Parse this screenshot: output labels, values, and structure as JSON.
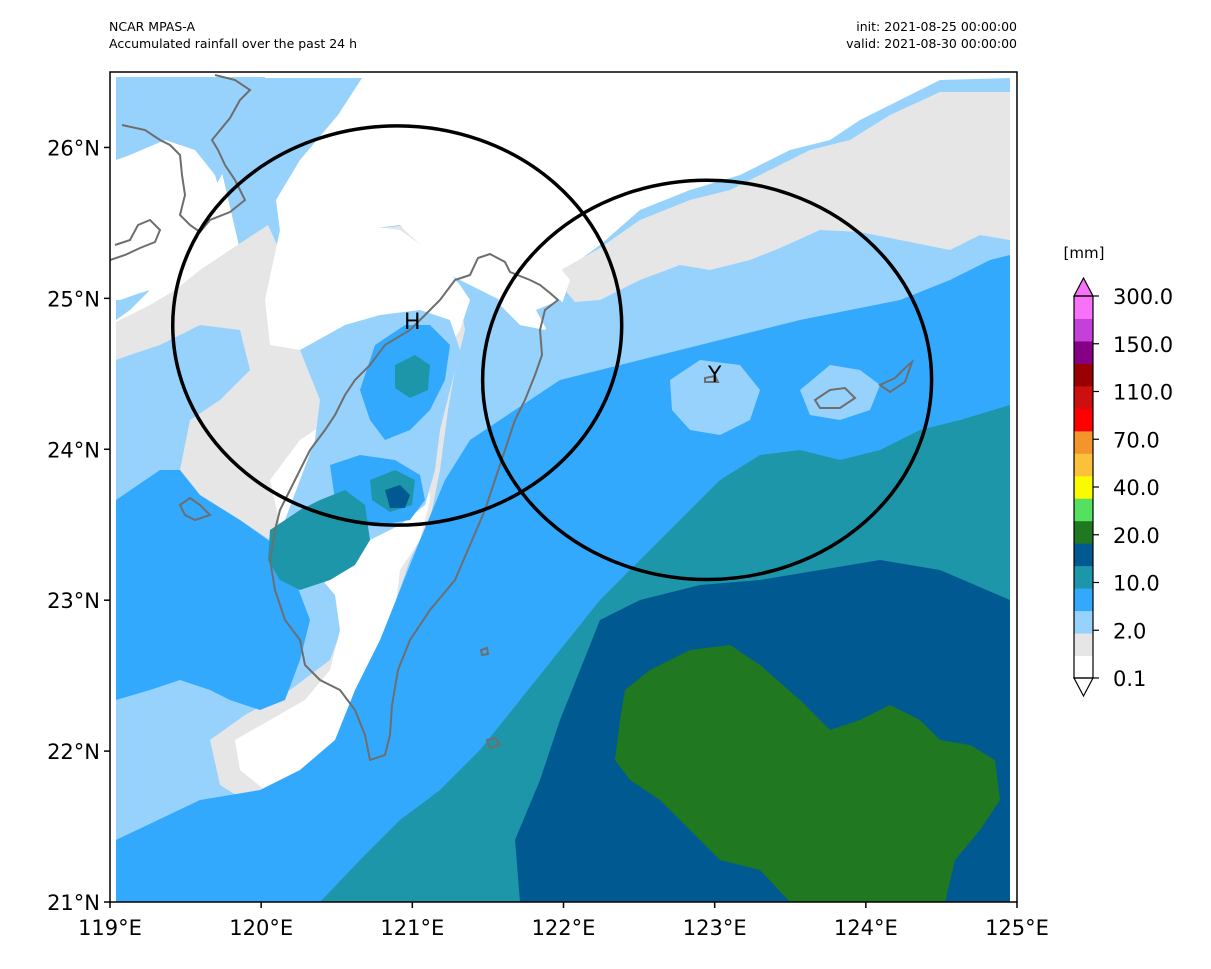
{
  "header": {
    "model": "NCAR MPAS-A",
    "description": "Accumulated rainfall over the past 24 h",
    "init": "init: 2021-08-25 00:00:00",
    "valid": "valid: 2021-08-30 00:00:00"
  },
  "map": {
    "lon_range": [
      119,
      125
    ],
    "lat_range": [
      21,
      26.5
    ],
    "lon_ticks": [
      "119°E",
      "120°E",
      "121°E",
      "122°E",
      "123°E",
      "124°E",
      "125°E"
    ],
    "lat_ticks": [
      "21°N",
      "22°N",
      "23°N",
      "24°N",
      "25°N",
      "26°N"
    ],
    "markers": [
      {
        "label": "H",
        "lon": 121.0,
        "lat": 24.85
      },
      {
        "label": "Y",
        "lon": 123.0,
        "lat": 24.5
      }
    ],
    "circles": [
      {
        "center_lon": 120.9,
        "center_lat": 24.82,
        "radius_deg": 1.35
      },
      {
        "center_lon": 122.95,
        "center_lat": 24.46,
        "radius_deg": 1.35
      }
    ]
  },
  "colorbar": {
    "unit": "[mm]",
    "tick_labels": [
      "0.1",
      "2.0",
      "10.0",
      "20.0",
      "40.0",
      "70.0",
      "110.0",
      "150.0",
      "300.0"
    ],
    "colors": [
      "#ffffff",
      "#e6e6e6",
      "#97d2fd",
      "#33a9fe",
      "#1e96aa",
      "#005a91",
      "#207820",
      "#55e05f",
      "#fafa00",
      "#fbc13a",
      "#f3952b",
      "#ff0000",
      "#cc1010",
      "#990000",
      "#850085",
      "#c441d9",
      "#f871f9"
    ],
    "extend": "both"
  },
  "rainfall_colors": {
    "none": "#ffffff",
    "light_gray": "#e6e6e6",
    "light_blue": "#97d2fd",
    "blue": "#33a9fe",
    "teal": "#1e96aa",
    "dark_blue": "#005a91",
    "green": "#207820"
  }
}
